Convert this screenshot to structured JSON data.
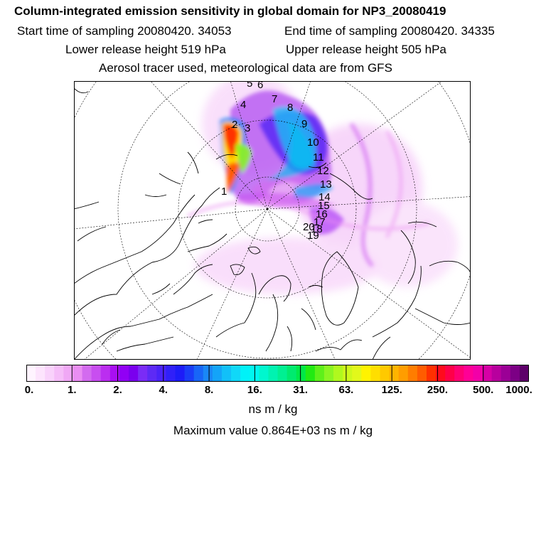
{
  "header": {
    "title": "Column-integrated emission sensitivity in global domain for NP3_20080419",
    "start_label": "Start time of sampling 20080420. 34053",
    "end_label": "End time of sampling 20080420. 34335",
    "lower_label": "Lower release height  519 hPa",
    "upper_label": "Upper release height  505 hPa",
    "tracer_label": "Aerosol tracer used, meteorological data are from GFS"
  },
  "map": {
    "projection": "north-polar-stereographic",
    "trajectory_labels": [
      "1",
      "2",
      "3",
      "4",
      "5",
      "6",
      "7",
      "8",
      "9",
      "10",
      "11",
      "12",
      "13",
      "14",
      "15",
      "16",
      "17",
      "18",
      "19",
      "20"
    ]
  },
  "colorbar": {
    "tick_labels": [
      "0.",
      "1.",
      "2.",
      "4.",
      "8.",
      "16.",
      "31.",
      "63.",
      "125.",
      "250.",
      "500.",
      "1000."
    ],
    "colors": [
      "#fff4ff",
      "#fde4fd",
      "#f9d2fb",
      "#f5bdf8",
      "#f0a8f5",
      "#ea8ef2",
      "#d36bef",
      "#c84ef0",
      "#bb2ef0",
      "#a90ff2",
      "#9100f5",
      "#7a00ee",
      "#7a2cf6",
      "#5d2af5",
      "#4a23f8",
      "#3020f8",
      "#1d1cf8",
      "#1a3df7",
      "#1866f7",
      "#1a87f7",
      "#14a4f8",
      "#12c0f8",
      "#10d8f8",
      "#00f2f8",
      "#00f7f0",
      "#00f7cf",
      "#00f3b1",
      "#00f092",
      "#00ea6f",
      "#00e848",
      "#22ea12",
      "#5ef01a",
      "#8af522",
      "#b0f81e",
      "#cef81c",
      "#e2f81b",
      "#fff300",
      "#ffde00",
      "#ffc900",
      "#ffb400",
      "#ff9d00",
      "#ff7d00",
      "#ff5c00",
      "#ff3000",
      "#ff0b1c",
      "#ff0048",
      "#ff0073",
      "#ff0096",
      "#f200a8",
      "#d600a6",
      "#b8009e",
      "#9b0096",
      "#7c0085",
      "#5e006a"
    ]
  },
  "units": "ns m / kg",
  "maximum_label": "Maximum value  0.864E+03 ns m / kg"
}
